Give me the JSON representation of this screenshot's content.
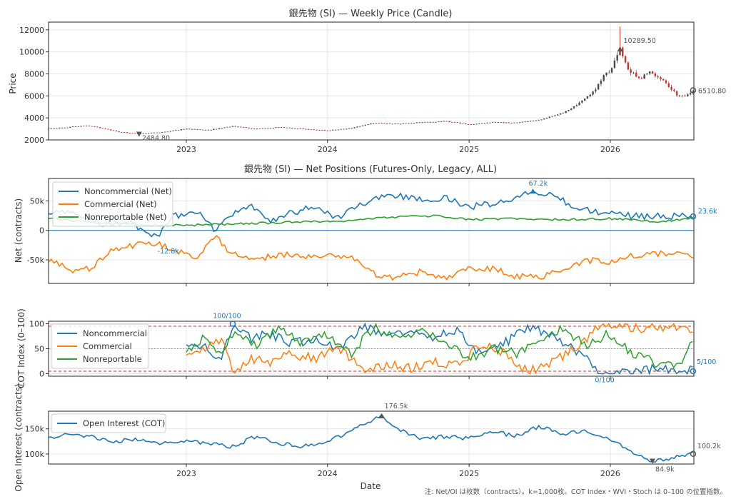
{
  "chart_data": [
    {
      "type": "candlestick",
      "title": "銀先物 (SI) — Weekly Price (Candle)",
      "ylabel": "Price",
      "ylim": [
        2000,
        12700
      ],
      "xlim": [
        "2022-01-10",
        "2026-08-05"
      ],
      "yticks": [
        "2000",
        "4000",
        "6000",
        "8000",
        "10000",
        "12000"
      ],
      "xticks": [
        "2023",
        "2024",
        "2025",
        "2026"
      ],
      "annotations": [
        {
          "label": "10289.50",
          "date": "2026-01-26",
          "value": 10289.5
        },
        {
          "label": "2484.80",
          "date": "2022-09-01",
          "value": 2484.8
        },
        {
          "label": "6510.80",
          "date": "2026-08-03",
          "value": 6510.8
        }
      ],
      "close_points": [
        [
          "2022-01-10",
          3000
        ],
        [
          "2022-03-01",
          3150
        ],
        [
          "2022-04-15",
          3300
        ],
        [
          "2022-06-01",
          3050
        ],
        [
          "2022-07-15",
          2700
        ],
        [
          "2022-09-01",
          2550
        ],
        [
          "2022-11-01",
          2700
        ],
        [
          "2023-01-01",
          3000
        ],
        [
          "2023-03-01",
          2900
        ],
        [
          "2023-05-01",
          3250
        ],
        [
          "2023-07-01",
          3000
        ],
        [
          "2023-09-01",
          3150
        ],
        [
          "2023-11-01",
          3000
        ],
        [
          "2024-01-01",
          2850
        ],
        [
          "2024-03-01",
          3050
        ],
        [
          "2024-05-01",
          3550
        ],
        [
          "2024-07-01",
          3450
        ],
        [
          "2024-09-01",
          3600
        ],
        [
          "2024-11-01",
          3700
        ],
        [
          "2025-01-01",
          3400
        ],
        [
          "2025-03-01",
          3600
        ],
        [
          "2025-05-01",
          3550
        ],
        [
          "2025-07-01",
          3800
        ],
        [
          "2025-09-01",
          4500
        ],
        [
          "2025-10-15",
          5300
        ],
        [
          "2025-11-15",
          6200
        ],
        [
          "2025-12-10",
          7500
        ],
        [
          "2026-01-05",
          8600
        ],
        [
          "2026-01-26",
          10200
        ],
        [
          "2026-02-20",
          8300
        ],
        [
          "2026-03-15",
          7600
        ],
        [
          "2026-04-20",
          8200
        ],
        [
          "2026-05-20",
          7300
        ],
        [
          "2026-06-20",
          6100
        ],
        [
          "2026-07-15",
          5900
        ],
        [
          "2026-08-03",
          6510.8
        ]
      ],
      "last_close": 6510.8
    },
    {
      "type": "line",
      "title": "銀先物 (SI) — Net Positions (Futures-Only, Legacy, ALL)",
      "ylabel": "Net (contracts)",
      "ylim": [
        -90000,
        88000
      ],
      "yticks": [
        "50k",
        "0",
        "-50k"
      ],
      "annotations": [
        {
          "label": "67.2k",
          "date": "2025-06-15",
          "value": 67200
        },
        {
          "label": "-12.8k",
          "date": "2022-10-15",
          "value": -12800
        },
        {
          "label": "23.6k",
          "date": "2026-08-03",
          "value": 23600
        }
      ],
      "series": [
        {
          "name": "Noncommercial (Net)",
          "color": "#1f77b4",
          "points": [
            [
              "2022-01-10",
              30000
            ],
            [
              "2022-04-01",
              28000
            ],
            [
              "2022-06-01",
              10000
            ],
            [
              "2022-08-01",
              15000
            ],
            [
              "2022-10-15",
              -12800
            ],
            [
              "2022-12-01",
              25000
            ],
            [
              "2023-02-01",
              30000
            ],
            [
              "2023-03-15",
              0
            ],
            [
              "2023-05-01",
              25000
            ],
            [
              "2023-06-15",
              45000
            ],
            [
              "2023-08-01",
              15000
            ],
            [
              "2023-10-01",
              30000
            ],
            [
              "2023-12-01",
              40000
            ],
            [
              "2024-02-01",
              20000
            ],
            [
              "2024-03-15",
              40000
            ],
            [
              "2024-05-01",
              55000
            ],
            [
              "2024-07-01",
              60000
            ],
            [
              "2024-09-01",
              50000
            ],
            [
              "2024-11-01",
              55000
            ],
            [
              "2025-01-01",
              40000
            ],
            [
              "2025-03-01",
              45000
            ],
            [
              "2025-05-01",
              55000
            ],
            [
              "2025-06-15",
              67200
            ],
            [
              "2025-08-01",
              60000
            ],
            [
              "2025-10-01",
              40000
            ],
            [
              "2025-12-01",
              30000
            ],
            [
              "2026-02-01",
              25000
            ],
            [
              "2026-05-01",
              24000
            ],
            [
              "2026-08-03",
              23600
            ]
          ]
        },
        {
          "name": "Commercial (Net)",
          "color": "#ff7f0e",
          "points": [
            [
              "2022-01-10",
              -50000
            ],
            [
              "2022-03-15",
              -70000
            ],
            [
              "2022-05-01",
              -65000
            ],
            [
              "2022-07-01",
              -30000
            ],
            [
              "2022-09-01",
              -25000
            ],
            [
              "2022-10-15",
              -20000
            ],
            [
              "2022-12-01",
              -35000
            ],
            [
              "2023-02-01",
              -45000
            ],
            [
              "2023-03-15",
              -10000
            ],
            [
              "2023-05-01",
              -40000
            ],
            [
              "2023-07-01",
              -50000
            ],
            [
              "2023-09-01",
              -40000
            ],
            [
              "2023-11-01",
              -45000
            ],
            [
              "2024-01-01",
              -40000
            ],
            [
              "2024-03-15",
              -50000
            ],
            [
              "2024-05-01",
              -75000
            ],
            [
              "2024-07-01",
              -80000
            ],
            [
              "2024-09-01",
              -70000
            ],
            [
              "2024-11-01",
              -80000
            ],
            [
              "2025-01-01",
              -65000
            ],
            [
              "2025-03-01",
              -65000
            ],
            [
              "2025-05-01",
              -78000
            ],
            [
              "2025-07-01",
              -80000
            ],
            [
              "2025-09-01",
              -65000
            ],
            [
              "2025-11-01",
              -50000
            ],
            [
              "2026-01-01",
              -55000
            ],
            [
              "2026-03-01",
              -42000
            ],
            [
              "2026-06-01",
              -40000
            ],
            [
              "2026-08-03",
              -45000
            ]
          ]
        },
        {
          "name": "Nonreportable (Net)",
          "color": "#2ca02c",
          "points": [
            [
              "2022-01-10",
              20000
            ],
            [
              "2022-06-01",
              12000
            ],
            [
              "2022-11-01",
              8000
            ],
            [
              "2023-04-01",
              10000
            ],
            [
              "2023-10-01",
              14000
            ],
            [
              "2024-02-01",
              15000
            ],
            [
              "2024-06-01",
              22000
            ],
            [
              "2024-10-01",
              25000
            ],
            [
              "2025-01-01",
              18000
            ],
            [
              "2025-05-01",
              20000
            ],
            [
              "2025-09-01",
              18000
            ],
            [
              "2026-01-01",
              20000
            ],
            [
              "2026-05-01",
              15000
            ],
            [
              "2026-08-03",
              20000
            ]
          ]
        }
      ]
    },
    {
      "type": "line",
      "ylabel": "COT Index (0–100)",
      "ylim": [
        -5,
        105
      ],
      "yticks": [
        "0",
        "50",
        "100"
      ],
      "reference_lines": [
        5,
        50,
        95
      ],
      "annotations": [
        {
          "label": "100/100",
          "date": "2023-05-01",
          "value": 100
        },
        {
          "label": "0/100",
          "date": "2025-12-10",
          "value": 0
        },
        {
          "label": "5/100",
          "date": "2026-08-03",
          "value": 5
        }
      ],
      "series": [
        {
          "name": "Noncommercial",
          "color": "#1f77b4",
          "points": [
            [
              "2023-01-01",
              65
            ],
            [
              "2023-02-15",
              55
            ],
            [
              "2023-04-01",
              30
            ],
            [
              "2023-05-01",
              100
            ],
            [
              "2023-06-15",
              70
            ],
            [
              "2023-08-01",
              80
            ],
            [
              "2023-10-01",
              60
            ],
            [
              "2023-12-01",
              70
            ],
            [
              "2024-02-01",
              50
            ],
            [
              "2024-04-01",
              95
            ],
            [
              "2024-06-01",
              80
            ],
            [
              "2024-08-01",
              90
            ],
            [
              "2024-10-01",
              75
            ],
            [
              "2024-12-01",
              85
            ],
            [
              "2025-02-01",
              40
            ],
            [
              "2025-04-01",
              60
            ],
            [
              "2025-06-01",
              95
            ],
            [
              "2025-08-01",
              80
            ],
            [
              "2025-10-01",
              50
            ],
            [
              "2025-12-10",
              0
            ],
            [
              "2026-02-01",
              5
            ],
            [
              "2026-04-01",
              10
            ],
            [
              "2026-06-01",
              8
            ],
            [
              "2026-08-03",
              5
            ]
          ]
        },
        {
          "name": "Commercial",
          "color": "#ff7f0e",
          "points": [
            [
              "2023-01-01",
              35
            ],
            [
              "2023-02-15",
              45
            ],
            [
              "2023-04-01",
              70
            ],
            [
              "2023-05-01",
              5
            ],
            [
              "2023-06-15",
              30
            ],
            [
              "2023-08-01",
              20
            ],
            [
              "2023-10-01",
              40
            ],
            [
              "2023-12-01",
              30
            ],
            [
              "2024-02-01",
              50
            ],
            [
              "2024-04-01",
              5
            ],
            [
              "2024-06-01",
              20
            ],
            [
              "2024-08-01",
              10
            ],
            [
              "2024-10-01",
              25
            ],
            [
              "2024-12-01",
              15
            ],
            [
              "2025-02-01",
              60
            ],
            [
              "2025-04-01",
              40
            ],
            [
              "2025-06-01",
              5
            ],
            [
              "2025-08-01",
              20
            ],
            [
              "2025-10-01",
              50
            ],
            [
              "2025-12-10",
              100
            ],
            [
              "2026-02-01",
              95
            ],
            [
              "2026-04-01",
              90
            ],
            [
              "2026-06-01",
              92
            ],
            [
              "2026-08-03",
              88
            ]
          ]
        },
        {
          "name": "Nonreportable",
          "color": "#2ca02c",
          "points": [
            [
              "2023-01-01",
              50
            ],
            [
              "2023-02-15",
              70
            ],
            [
              "2023-04-01",
              40
            ],
            [
              "2023-05-01",
              80
            ],
            [
              "2023-07-01",
              60
            ],
            [
              "2023-09-01",
              90
            ],
            [
              "2023-11-01",
              60
            ],
            [
              "2024-01-01",
              80
            ],
            [
              "2024-03-01",
              40
            ],
            [
              "2024-05-01",
              95
            ],
            [
              "2024-07-01",
              70
            ],
            [
              "2024-09-01",
              90
            ],
            [
              "2024-11-01",
              60
            ],
            [
              "2025-01-01",
              30
            ],
            [
              "2025-03-01",
              50
            ],
            [
              "2025-05-01",
              40
            ],
            [
              "2025-07-01",
              70
            ],
            [
              "2025-09-01",
              90
            ],
            [
              "2025-11-01",
              60
            ],
            [
              "2026-01-01",
              80
            ],
            [
              "2026-03-01",
              40
            ],
            [
              "2026-05-01",
              20
            ],
            [
              "2026-07-01",
              15
            ],
            [
              "2026-08-03",
              70
            ]
          ]
        }
      ]
    },
    {
      "type": "line",
      "ylabel": "Open Interest (contracts)",
      "xlabel": "Date",
      "ylim": [
        80000,
        185000
      ],
      "yticks": [
        "150k",
        "100k"
      ],
      "xticks": [
        "2023",
        "2024",
        "2025",
        "2026"
      ],
      "annotations": [
        {
          "label": "176.5k",
          "date": "2024-05-20",
          "value": 176500
        },
        {
          "label": "84.9k",
          "date": "2026-04-20",
          "value": 84900
        },
        {
          "label": "100.2k",
          "date": "2026-08-03",
          "value": 100200
        }
      ],
      "series": [
        {
          "name": "Open Interest (COT)",
          "color": "#1f77b4",
          "points": [
            [
              "2022-01-10",
              130000
            ],
            [
              "2022-03-01",
              140000
            ],
            [
              "2022-05-01",
              135000
            ],
            [
              "2022-07-01",
              125000
            ],
            [
              "2022-09-01",
              130000
            ],
            [
              "2022-11-01",
              120000
            ],
            [
              "2023-01-01",
              125000
            ],
            [
              "2023-03-01",
              120000
            ],
            [
              "2023-05-01",
              115000
            ],
            [
              "2023-07-01",
              135000
            ],
            [
              "2023-09-01",
              120000
            ],
            [
              "2023-11-01",
              115000
            ],
            [
              "2024-01-01",
              125000
            ],
            [
              "2024-03-01",
              145000
            ],
            [
              "2024-05-20",
              176500
            ],
            [
              "2024-07-01",
              150000
            ],
            [
              "2024-09-01",
              130000
            ],
            [
              "2024-11-01",
              135000
            ],
            [
              "2025-01-01",
              130000
            ],
            [
              "2025-03-01",
              145000
            ],
            [
              "2025-05-01",
              135000
            ],
            [
              "2025-07-01",
              155000
            ],
            [
              "2025-09-01",
              140000
            ],
            [
              "2025-11-01",
              145000
            ],
            [
              "2026-01-01",
              130000
            ],
            [
              "2026-03-01",
              100000
            ],
            [
              "2026-04-20",
              84900
            ],
            [
              "2026-06-01",
              90000
            ],
            [
              "2026-08-03",
              100200
            ]
          ]
        }
      ]
    }
  ],
  "legends": {
    "net": [
      "Noncommercial (Net)",
      "Commercial (Net)",
      "Nonreportable (Net)"
    ],
    "cot": [
      "Noncommercial",
      "Commercial",
      "Nonreportable"
    ],
    "oi": [
      "Open Interest (COT)"
    ]
  },
  "colors": {
    "blue": "#1f77b4",
    "orange": "#ff7f0e",
    "green": "#2ca02c",
    "up": "#4a4a4a",
    "down": "#c0392b"
  },
  "footnote": "注: Net/OI は枚数（contracts）。k=1,000枚。COT Index・WVI・Stoch は 0–100 の位置指数。"
}
